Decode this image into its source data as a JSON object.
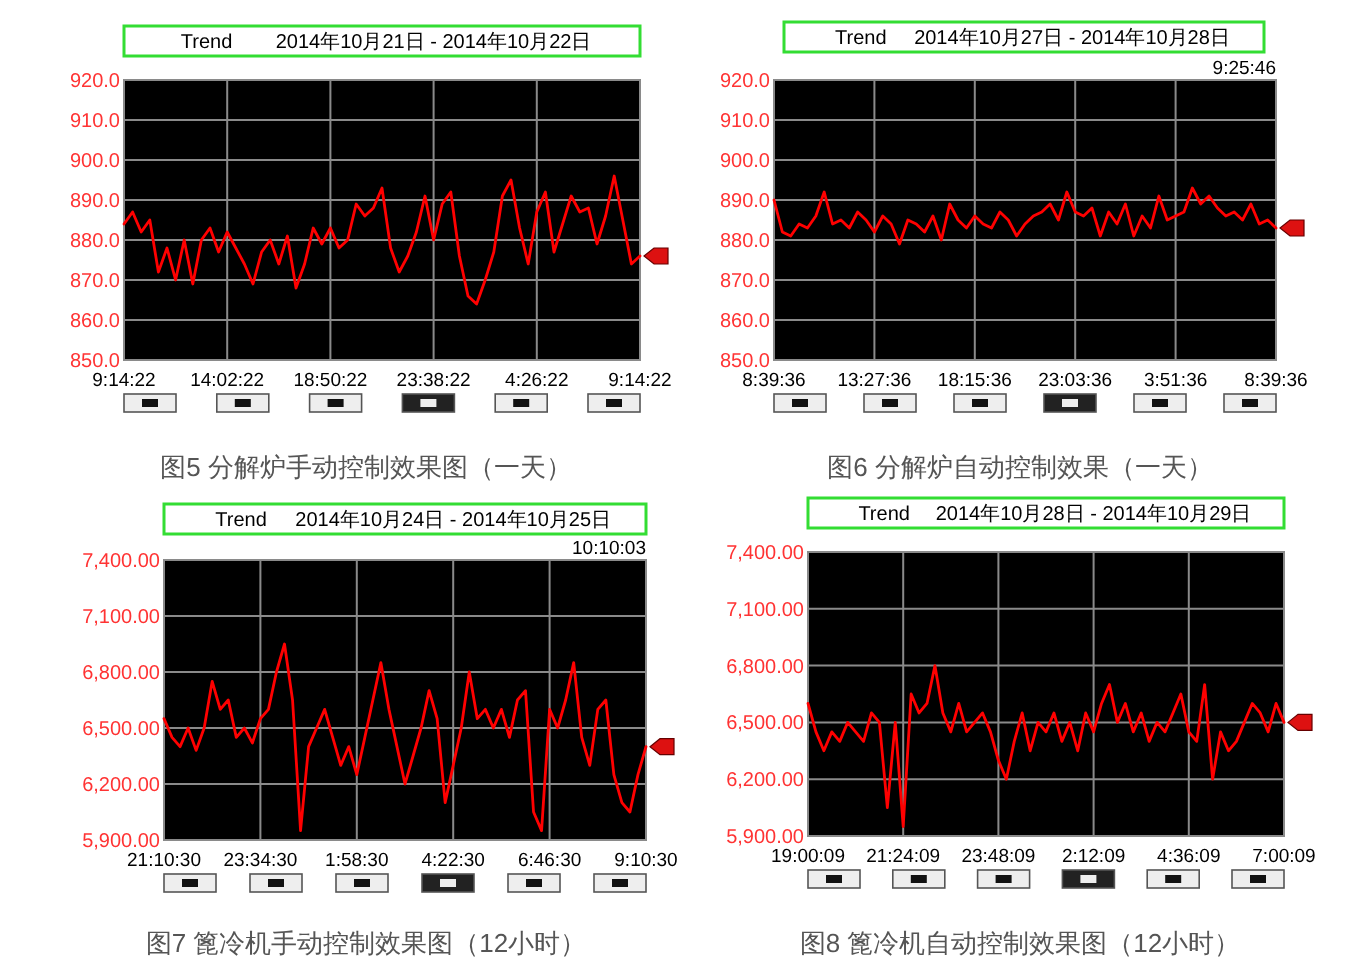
{
  "chart_data": [
    {
      "type": "line",
      "title": "Trend",
      "subtitle": "2014年10月21日 - 2014年10月22日",
      "annotations": [
        "图5  分解炉手动控制效果图（一天）"
      ],
      "grid": true,
      "xlim": [
        "2014-10-21T09:14:22",
        "2014-10-22T09:14:22"
      ],
      "xticks": [
        {
          "value": "2014-10-21T09:14:22",
          "label": "9:14:22"
        },
        {
          "value": "2014-10-21T14:02:22",
          "label": "14:02:22"
        },
        {
          "value": "2014-10-21T18:50:22",
          "label": "18:50:22"
        },
        {
          "value": "2014-10-21T23:38:22",
          "label": "23:38:22"
        },
        {
          "value": "2014-10-22T04:26:22",
          "label": "4:26:22"
        },
        {
          "value": "2014-10-22T09:14:22",
          "label": "9:14:22"
        }
      ],
      "ylim": [
        850,
        920
      ],
      "yticks": [
        {
          "value": 850,
          "label": "850.0"
        },
        {
          "value": 860,
          "label": "860.0"
        },
        {
          "value": 870,
          "label": "870.0"
        },
        {
          "value": 880,
          "label": "880.0"
        },
        {
          "value": 890,
          "label": "890.0"
        },
        {
          "value": 900,
          "label": "900.0"
        },
        {
          "value": 910,
          "label": "910.0"
        },
        {
          "value": 920,
          "label": "920.0"
        }
      ],
      "x": [
        "2014-10-21T09:14:22",
        "2014-10-21T09:38:22",
        "2014-10-21T10:02:22",
        "2014-10-21T10:26:22",
        "2014-10-21T10:50:22",
        "2014-10-21T11:14:22",
        "2014-10-21T11:38:22",
        "2014-10-21T12:02:22",
        "2014-10-21T12:26:22",
        "2014-10-21T12:50:22",
        "2014-10-21T13:14:22",
        "2014-10-21T13:38:22",
        "2014-10-21T14:02:22",
        "2014-10-21T14:26:22",
        "2014-10-21T14:50:22",
        "2014-10-21T15:14:22",
        "2014-10-21T15:38:22",
        "2014-10-21T16:02:22",
        "2014-10-21T16:26:22",
        "2014-10-21T16:50:22",
        "2014-10-21T17:14:22",
        "2014-10-21T17:38:22",
        "2014-10-21T18:02:22",
        "2014-10-21T18:26:22",
        "2014-10-21T18:50:22",
        "2014-10-21T19:14:22",
        "2014-10-21T19:38:22",
        "2014-10-21T20:02:22",
        "2014-10-21T20:26:22",
        "2014-10-21T20:50:22",
        "2014-10-21T21:14:22",
        "2014-10-21T21:38:22",
        "2014-10-21T22:02:22",
        "2014-10-21T22:26:22",
        "2014-10-21T22:50:22",
        "2014-10-21T23:14:22",
        "2014-10-21T23:38:22",
        "2014-10-22T00:02:22",
        "2014-10-22T00:26:22",
        "2014-10-22T00:50:22",
        "2014-10-22T01:14:22",
        "2014-10-22T01:38:22",
        "2014-10-22T02:02:22",
        "2014-10-22T02:26:22",
        "2014-10-22T02:50:22",
        "2014-10-22T03:14:22",
        "2014-10-22T03:38:22",
        "2014-10-22T04:02:22",
        "2014-10-22T04:26:22",
        "2014-10-22T04:50:22",
        "2014-10-22T05:14:22",
        "2014-10-22T05:38:22",
        "2014-10-22T06:02:22",
        "2014-10-22T06:26:22",
        "2014-10-22T06:50:22",
        "2014-10-22T07:14:22",
        "2014-10-22T07:38:22",
        "2014-10-22T08:02:22",
        "2014-10-22T08:26:22",
        "2014-10-22T08:50:22",
        "2014-10-22T09:14:22"
      ],
      "series": [
        {
          "color": "#ff0000",
          "values": [
            884,
            887,
            882,
            885,
            872,
            878,
            870,
            880,
            869,
            880,
            883,
            877,
            882,
            878,
            874,
            869,
            877,
            880,
            874,
            881,
            868,
            874,
            883,
            879,
            883,
            878,
            880,
            889,
            886,
            888,
            893,
            878,
            872,
            876,
            882,
            891,
            880,
            889,
            892,
            876,
            866,
            864,
            870,
            877,
            891,
            895,
            883,
            874,
            887,
            892,
            877,
            884,
            891,
            887,
            888,
            879,
            886,
            896,
            885,
            874,
            876
          ]
        }
      ]
    },
    {
      "type": "line",
      "title": "Trend",
      "subtitle": "2014年10月27日 - 2014年10月28日",
      "annotations": [
        "图6  分解炉自动控制效果（一天）",
        "9:25:46"
      ],
      "grid": true,
      "xlim": [
        "2014-10-27T08:39:36",
        "2014-10-28T08:39:36"
      ],
      "xticks": [
        {
          "value": "2014-10-27T08:39:36",
          "label": "8:39:36"
        },
        {
          "value": "2014-10-27T13:27:36",
          "label": "13:27:36"
        },
        {
          "value": "2014-10-27T18:15:36",
          "label": "18:15:36"
        },
        {
          "value": "2014-10-27T23:03:36",
          "label": "23:03:36"
        },
        {
          "value": "2014-10-28T03:51:36",
          "label": "3:51:36"
        },
        {
          "value": "2014-10-28T08:39:36",
          "label": "8:39:36"
        }
      ],
      "ylim": [
        850,
        920
      ],
      "yticks": [
        {
          "value": 850,
          "label": "850.0"
        },
        {
          "value": 860,
          "label": "860.0"
        },
        {
          "value": 870,
          "label": "870.0"
        },
        {
          "value": 880,
          "label": "880.0"
        },
        {
          "value": 890,
          "label": "890.0"
        },
        {
          "value": 900,
          "label": "900.0"
        },
        {
          "value": 910,
          "label": "910.0"
        },
        {
          "value": 920,
          "label": "920.0"
        }
      ],
      "x": [
        "2014-10-27T08:39:36",
        "2014-10-27T09:03:36",
        "2014-10-27T09:27:36",
        "2014-10-27T09:51:36",
        "2014-10-27T10:15:36",
        "2014-10-27T10:39:36",
        "2014-10-27T11:03:36",
        "2014-10-27T11:27:36",
        "2014-10-27T11:51:36",
        "2014-10-27T12:15:36",
        "2014-10-27T12:39:36",
        "2014-10-27T13:03:36",
        "2014-10-27T13:27:36",
        "2014-10-27T13:51:36",
        "2014-10-27T14:15:36",
        "2014-10-27T14:39:36",
        "2014-10-27T15:03:36",
        "2014-10-27T15:27:36",
        "2014-10-27T15:51:36",
        "2014-10-27T16:15:36",
        "2014-10-27T16:39:36",
        "2014-10-27T17:03:36",
        "2014-10-27T17:27:36",
        "2014-10-27T17:51:36",
        "2014-10-27T18:15:36",
        "2014-10-27T18:39:36",
        "2014-10-27T19:03:36",
        "2014-10-27T19:27:36",
        "2014-10-27T19:51:36",
        "2014-10-27T20:15:36",
        "2014-10-27T20:39:36",
        "2014-10-27T21:03:36",
        "2014-10-27T21:27:36",
        "2014-10-27T21:51:36",
        "2014-10-27T22:15:36",
        "2014-10-27T22:39:36",
        "2014-10-27T23:03:36",
        "2014-10-27T23:27:36",
        "2014-10-27T23:51:36",
        "2014-10-28T00:15:36",
        "2014-10-28T00:39:36",
        "2014-10-28T01:03:36",
        "2014-10-28T01:27:36",
        "2014-10-28T01:51:36",
        "2014-10-28T02:15:36",
        "2014-10-28T02:39:36",
        "2014-10-28T03:03:36",
        "2014-10-28T03:27:36",
        "2014-10-28T03:51:36",
        "2014-10-28T04:15:36",
        "2014-10-28T04:39:36",
        "2014-10-28T05:03:36",
        "2014-10-28T05:27:36",
        "2014-10-28T05:51:36",
        "2014-10-28T06:15:36",
        "2014-10-28T06:39:36",
        "2014-10-28T07:03:36",
        "2014-10-28T07:27:36",
        "2014-10-28T07:51:36",
        "2014-10-28T08:15:36",
        "2014-10-28T08:39:36"
      ],
      "series": [
        {
          "color": "#ff0000",
          "values": [
            890,
            882,
            881,
            884,
            883,
            886,
            892,
            884,
            885,
            883,
            887,
            885,
            882,
            886,
            884,
            879,
            885,
            884,
            882,
            886,
            880,
            889,
            885,
            883,
            886,
            884,
            883,
            887,
            885,
            881,
            884,
            886,
            887,
            889,
            885,
            892,
            887,
            886,
            888,
            881,
            887,
            884,
            889,
            881,
            886,
            883,
            891,
            885,
            886,
            887,
            893,
            889,
            891,
            888,
            886,
            887,
            885,
            889,
            884,
            885,
            883
          ]
        }
      ]
    },
    {
      "type": "line",
      "title": "Trend",
      "subtitle": "2014年10月24日 - 2014年10月25日",
      "annotations": [
        "图7  篦冷机手动控制效果图（12小时）",
        "10:10:03"
      ],
      "grid": true,
      "xlim": [
        "2014-10-24T21:10:30",
        "2014-10-25T09:10:30"
      ],
      "xticks": [
        {
          "value": "2014-10-24T21:10:30",
          "label": "21:10:30"
        },
        {
          "value": "2014-10-24T23:34:30",
          "label": "23:34:30"
        },
        {
          "value": "2014-10-25T01:58:30",
          "label": "1:58:30"
        },
        {
          "value": "2014-10-25T04:22:30",
          "label": "4:22:30"
        },
        {
          "value": "2014-10-25T06:46:30",
          "label": "6:46:30"
        },
        {
          "value": "2014-10-25T09:10:30",
          "label": "9:10:30"
        }
      ],
      "ylim": [
        5900,
        7400
      ],
      "yticks": [
        {
          "value": 5900,
          "label": "5,900.00"
        },
        {
          "value": 6200,
          "label": "6,200.00"
        },
        {
          "value": 6500,
          "label": "6,500.00"
        },
        {
          "value": 6800,
          "label": "6,800.00"
        },
        {
          "value": 7100,
          "label": "7,100.00"
        },
        {
          "value": 7400,
          "label": "7,400.00"
        }
      ],
      "x": [
        "2014-10-24T21:10:30",
        "2014-10-24T21:22:30",
        "2014-10-24T21:34:30",
        "2014-10-24T21:46:30",
        "2014-10-24T21:58:30",
        "2014-10-24T22:10:30",
        "2014-10-24T22:22:30",
        "2014-10-24T22:34:30",
        "2014-10-24T22:46:30",
        "2014-10-24T22:58:30",
        "2014-10-24T23:10:30",
        "2014-10-24T23:22:30",
        "2014-10-24T23:34:30",
        "2014-10-24T23:46:30",
        "2014-10-24T23:58:30",
        "2014-10-25T00:10:30",
        "2014-10-25T00:22:30",
        "2014-10-25T00:34:30",
        "2014-10-25T00:46:30",
        "2014-10-25T00:58:30",
        "2014-10-25T01:10:30",
        "2014-10-25T01:22:30",
        "2014-10-25T01:34:30",
        "2014-10-25T01:46:30",
        "2014-10-25T01:58:30",
        "2014-10-25T02:10:30",
        "2014-10-25T02:22:30",
        "2014-10-25T02:34:30",
        "2014-10-25T02:46:30",
        "2014-10-25T02:58:30",
        "2014-10-25T03:10:30",
        "2014-10-25T03:22:30",
        "2014-10-25T03:34:30",
        "2014-10-25T03:46:30",
        "2014-10-25T03:58:30",
        "2014-10-25T04:10:30",
        "2014-10-25T04:22:30",
        "2014-10-25T04:34:30",
        "2014-10-25T04:46:30",
        "2014-10-25T04:58:30",
        "2014-10-25T05:10:30",
        "2014-10-25T05:22:30",
        "2014-10-25T05:34:30",
        "2014-10-25T05:46:30",
        "2014-10-25T05:58:30",
        "2014-10-25T06:10:30",
        "2014-10-25T06:22:30",
        "2014-10-25T06:34:30",
        "2014-10-25T06:46:30",
        "2014-10-25T06:58:30",
        "2014-10-25T07:10:30",
        "2014-10-25T07:22:30",
        "2014-10-25T07:34:30",
        "2014-10-25T07:46:30",
        "2014-10-25T07:58:30",
        "2014-10-25T08:10:30",
        "2014-10-25T08:22:30",
        "2014-10-25T08:34:30",
        "2014-10-25T08:46:30",
        "2014-10-25T08:58:30",
        "2014-10-25T09:10:30"
      ],
      "series": [
        {
          "color": "#ff0000",
          "values": [
            6550,
            6450,
            6400,
            6500,
            6380,
            6500,
            6750,
            6600,
            6650,
            6450,
            6500,
            6420,
            6550,
            6600,
            6800,
            6950,
            6650,
            5950,
            6400,
            6500,
            6600,
            6450,
            6300,
            6400,
            6250,
            6450,
            6650,
            6850,
            6600,
            6400,
            6200,
            6350,
            6500,
            6700,
            6550,
            6100,
            6300,
            6500,
            6800,
            6550,
            6600,
            6500,
            6600,
            6450,
            6650,
            6700,
            6050,
            5950,
            6600,
            6500,
            6650,
            6850,
            6450,
            6300,
            6600,
            6650,
            6250,
            6100,
            6050,
            6250,
            6400
          ]
        }
      ]
    },
    {
      "type": "line",
      "title": "Trend",
      "subtitle": "2014年10月28日 - 2014年10月29日",
      "annotations": [
        "图8  篦冷机自动控制效果图（12小时）"
      ],
      "grid": true,
      "xlim": [
        "2014-10-28T19:00:09",
        "2014-10-29T07:00:09"
      ],
      "xticks": [
        {
          "value": "2014-10-28T19:00:09",
          "label": "19:00:09"
        },
        {
          "value": "2014-10-28T21:24:09",
          "label": "21:24:09"
        },
        {
          "value": "2014-10-28T23:48:09",
          "label": "23:48:09"
        },
        {
          "value": "2014-10-29T02:12:09",
          "label": "2:12:09"
        },
        {
          "value": "2014-10-29T04:36:09",
          "label": "4:36:09"
        },
        {
          "value": "2014-10-29T07:00:09",
          "label": "7:00:09"
        }
      ],
      "ylim": [
        5900,
        7400
      ],
      "yticks": [
        {
          "value": 5900,
          "label": "5,900.00"
        },
        {
          "value": 6200,
          "label": "6,200.00"
        },
        {
          "value": 6500,
          "label": "6,500.00"
        },
        {
          "value": 6800,
          "label": "6,800.00"
        },
        {
          "value": 7100,
          "label": "7,100.00"
        },
        {
          "value": 7400,
          "label": "7,400.00"
        }
      ],
      "x": [
        "2014-10-28T19:00:09",
        "2014-10-28T19:12:09",
        "2014-10-28T19:24:09",
        "2014-10-28T19:36:09",
        "2014-10-28T19:48:09",
        "2014-10-28T20:00:09",
        "2014-10-28T20:12:09",
        "2014-10-28T20:24:09",
        "2014-10-28T20:36:09",
        "2014-10-28T20:48:09",
        "2014-10-28T21:00:09",
        "2014-10-28T21:12:09",
        "2014-10-28T21:24:09",
        "2014-10-28T21:36:09",
        "2014-10-28T21:48:09",
        "2014-10-28T22:00:09",
        "2014-10-28T22:12:09",
        "2014-10-28T22:24:09",
        "2014-10-28T22:36:09",
        "2014-10-28T22:48:09",
        "2014-10-28T23:00:09",
        "2014-10-28T23:12:09",
        "2014-10-28T23:24:09",
        "2014-10-28T23:36:09",
        "2014-10-28T23:48:09",
        "2014-10-29T00:00:09",
        "2014-10-29T00:12:09",
        "2014-10-29T00:24:09",
        "2014-10-29T00:36:09",
        "2014-10-29T00:48:09",
        "2014-10-29T01:00:09",
        "2014-10-29T01:12:09",
        "2014-10-29T01:24:09",
        "2014-10-29T01:36:09",
        "2014-10-29T01:48:09",
        "2014-10-29T02:00:09",
        "2014-10-29T02:12:09",
        "2014-10-29T02:24:09",
        "2014-10-29T02:36:09",
        "2014-10-29T02:48:09",
        "2014-10-29T03:00:09",
        "2014-10-29T03:12:09",
        "2014-10-29T03:24:09",
        "2014-10-29T03:36:09",
        "2014-10-29T03:48:09",
        "2014-10-29T04:00:09",
        "2014-10-29T04:12:09",
        "2014-10-29T04:24:09",
        "2014-10-29T04:36:09",
        "2014-10-29T04:48:09",
        "2014-10-29T05:00:09",
        "2014-10-29T05:12:09",
        "2014-10-29T05:24:09",
        "2014-10-29T05:36:09",
        "2014-10-29T05:48:09",
        "2014-10-29T06:00:09",
        "2014-10-29T06:12:09",
        "2014-10-29T06:24:09",
        "2014-10-29T06:36:09",
        "2014-10-29T06:48:09",
        "2014-10-29T07:00:09"
      ],
      "series": [
        {
          "color": "#ff0000",
          "values": [
            6600,
            6450,
            6350,
            6450,
            6400,
            6500,
            6450,
            6400,
            6550,
            6500,
            6050,
            6500,
            5950,
            6650,
            6550,
            6600,
            6800,
            6550,
            6450,
            6600,
            6450,
            6500,
            6550,
            6450,
            6300,
            6200,
            6400,
            6550,
            6350,
            6500,
            6450,
            6550,
            6400,
            6500,
            6350,
            6550,
            6450,
            6600,
            6700,
            6500,
            6600,
            6450,
            6550,
            6400,
            6500,
            6450,
            6550,
            6650,
            6450,
            6400,
            6700,
            6200,
            6450,
            6350,
            6400,
            6500,
            6600,
            6550,
            6450,
            6600,
            6500
          ]
        }
      ]
    }
  ]
}
